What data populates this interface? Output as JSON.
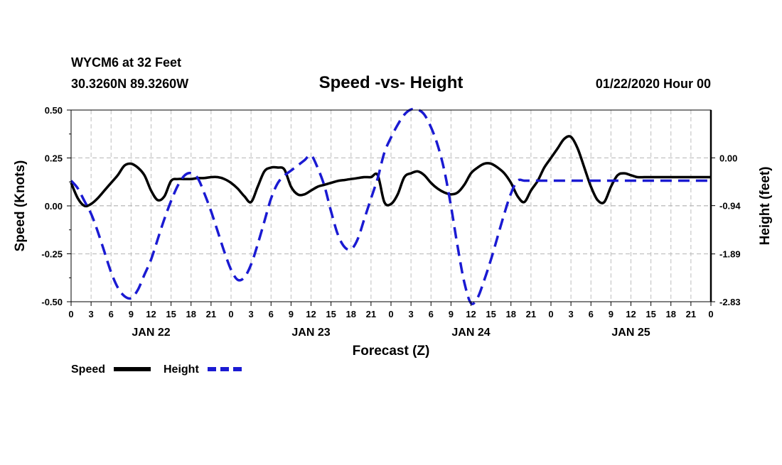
{
  "header": {
    "station": "WYCM6 at 32 Feet",
    "coords": "30.3260N 89.3260W",
    "title": "Speed -vs- Height",
    "datetime": "01/22/2020 Hour 00"
  },
  "legend": {
    "speed_label": "Speed",
    "height_label": "Height"
  },
  "colors": {
    "speed": "#000000",
    "height": "#1a1ad2",
    "grid": "#bdbdbd"
  },
  "chart_data": {
    "type": "line",
    "title": "Speed -vs- Height",
    "xlabel": "Forecast (Z)",
    "ylabel_left": "Speed (Knots)",
    "ylabel_right": "Height (feet)",
    "xlim": [
      0,
      96
    ],
    "ylim_left": [
      -0.5,
      0.5
    ],
    "ylim_right": [
      -2.83,
      0.94
    ],
    "y_ticks_left": [
      "0.50",
      "0.25",
      "0.00",
      "-0.25",
      "-0.50"
    ],
    "y_ticks_left_values": [
      0.5,
      0.25,
      0,
      -0.25,
      -0.5
    ],
    "y_ticks_right": [
      "0.00",
      "-0.94",
      "-1.89",
      "-2.83"
    ],
    "y_ticks_right_values": [
      0,
      -0.94,
      -1.89,
      -2.83
    ],
    "x_ticks": [
      "0",
      "3",
      "6",
      "9",
      "12",
      "15",
      "18",
      "21",
      "0",
      "3",
      "6",
      "9",
      "12",
      "15",
      "18",
      "21",
      "0",
      "3",
      "6",
      "9",
      "12",
      "15",
      "18",
      "21",
      "0",
      "3",
      "6",
      "9",
      "12",
      "15",
      "18",
      "21",
      "0"
    ],
    "x_ticks_hours": [
      0,
      3,
      6,
      9,
      12,
      15,
      18,
      21,
      24,
      27,
      30,
      33,
      36,
      39,
      42,
      45,
      48,
      51,
      54,
      57,
      60,
      63,
      66,
      69,
      72,
      75,
      78,
      81,
      84,
      87,
      90,
      93,
      96
    ],
    "day_labels": [
      {
        "label": "JAN 22",
        "hour": 12
      },
      {
        "label": "JAN 23",
        "hour": 36
      },
      {
        "label": "JAN 24",
        "hour": 60
      },
      {
        "label": "JAN 25",
        "hour": 84
      }
    ],
    "grid": true,
    "legend_position": "bottom-left",
    "series": [
      {
        "name": "Speed",
        "axis": "left",
        "style": "solid",
        "x": [
          0,
          1,
          2,
          3,
          4,
          5,
          6,
          7,
          8,
          9,
          10,
          11,
          12,
          13,
          14,
          15,
          16,
          17,
          18,
          19,
          20,
          21,
          22,
          23,
          24,
          25,
          26,
          27,
          28,
          29,
          30,
          31,
          32,
          33,
          34,
          35,
          36,
          37,
          38,
          39,
          40,
          41,
          42,
          43,
          44,
          45,
          46,
          47,
          48,
          49,
          50,
          51,
          52,
          53,
          54,
          55,
          56,
          57,
          58,
          59,
          60,
          61,
          62,
          63,
          64,
          65,
          66,
          67,
          68,
          69,
          70,
          71,
          72,
          73,
          74,
          75,
          76,
          77,
          78,
          79,
          80,
          81,
          82,
          83,
          84,
          85,
          86,
          87,
          88,
          89,
          90,
          91,
          92,
          93,
          94,
          95,
          96
        ],
        "values": [
          0.12,
          0.04,
          0.0,
          0.01,
          0.04,
          0.08,
          0.12,
          0.16,
          0.21,
          0.22,
          0.2,
          0.16,
          0.08,
          0.03,
          0.05,
          0.13,
          0.14,
          0.14,
          0.14,
          0.145,
          0.145,
          0.15,
          0.15,
          0.14,
          0.12,
          0.09,
          0.05,
          0.02,
          0.1,
          0.18,
          0.2,
          0.2,
          0.19,
          0.1,
          0.06,
          0.06,
          0.08,
          0.1,
          0.11,
          0.12,
          0.13,
          0.135,
          0.14,
          0.145,
          0.15,
          0.15,
          0.16,
          0.02,
          0.01,
          0.06,
          0.15,
          0.17,
          0.18,
          0.16,
          0.12,
          0.09,
          0.07,
          0.06,
          0.07,
          0.11,
          0.17,
          0.2,
          0.22,
          0.22,
          0.2,
          0.17,
          0.12,
          0.05,
          0.02,
          0.08,
          0.13,
          0.2,
          0.25,
          0.3,
          0.35,
          0.36,
          0.3,
          0.2,
          0.1,
          0.03,
          0.02,
          0.1,
          0.16,
          0.17,
          0.16,
          0.15,
          0.15,
          0.15,
          0.15,
          0.15,
          0.15,
          0.15,
          0.15,
          0.15,
          0.15,
          0.15,
          0.15
        ]
      },
      {
        "name": "Height",
        "axis": "right",
        "style": "dashed",
        "x": [
          0,
          1,
          2,
          3,
          4,
          5,
          6,
          7,
          8,
          9,
          10,
          11,
          12,
          13,
          14,
          15,
          16,
          17,
          18,
          19,
          20,
          21,
          22,
          23,
          24,
          25,
          26,
          27,
          28,
          29,
          30,
          31,
          32,
          33,
          34,
          35,
          36,
          37,
          38,
          39,
          40,
          41,
          42,
          43,
          44,
          45,
          46,
          47,
          48,
          49,
          50,
          51,
          52,
          53,
          54,
          55,
          56,
          57,
          58,
          59,
          60,
          61,
          62,
          63,
          64,
          65,
          66,
          67,
          68,
          69,
          70,
          71,
          72,
          73,
          74,
          75,
          76,
          77,
          78,
          79,
          80,
          81,
          82,
          83,
          84,
          85,
          86,
          87,
          88,
          89,
          90,
          91,
          92,
          93,
          94,
          95,
          96
        ],
        "values": [
          -0.45,
          -0.6,
          -0.85,
          -1.1,
          -1.45,
          -1.85,
          -2.25,
          -2.55,
          -2.72,
          -2.76,
          -2.6,
          -2.3,
          -2.0,
          -1.6,
          -1.2,
          -0.85,
          -0.55,
          -0.35,
          -0.3,
          -0.4,
          -0.7,
          -1.05,
          -1.45,
          -1.85,
          -2.2,
          -2.4,
          -2.35,
          -2.1,
          -1.7,
          -1.25,
          -0.8,
          -0.5,
          -0.35,
          -0.25,
          -0.15,
          -0.05,
          0.05,
          -0.2,
          -0.55,
          -1.05,
          -1.5,
          -1.75,
          -1.8,
          -1.6,
          -1.2,
          -0.8,
          -0.4,
          0.1,
          0.4,
          0.65,
          0.85,
          0.95,
          0.95,
          0.85,
          0.6,
          0.25,
          -0.25,
          -0.95,
          -1.75,
          -2.45,
          -2.86,
          -2.75,
          -2.4,
          -2.0,
          -1.55,
          -1.1,
          -0.7,
          -0.45,
          -0.45,
          -0.45,
          -0.45,
          -0.45,
          -0.45,
          -0.45,
          -0.45,
          -0.45,
          -0.45,
          -0.45,
          -0.45,
          -0.45,
          -0.45,
          -0.45,
          -0.45,
          -0.45,
          -0.45,
          -0.45,
          -0.45,
          -0.45,
          -0.45,
          -0.45,
          -0.45,
          -0.45,
          -0.45,
          -0.45,
          -0.45,
          -0.45,
          -0.45
        ]
      }
    ]
  }
}
